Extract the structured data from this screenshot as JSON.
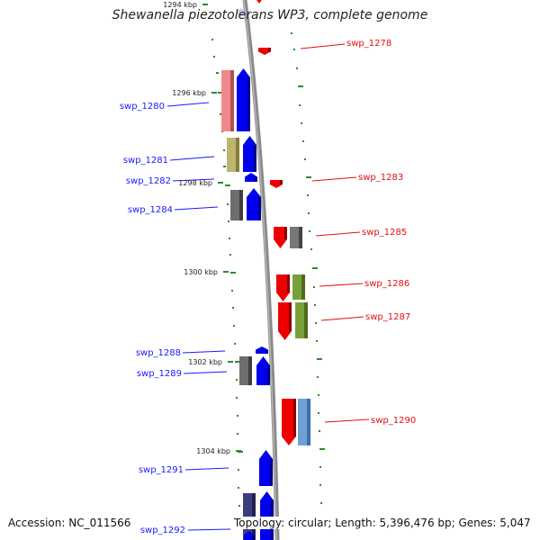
{
  "header": {
    "title": "Shewanella piezotolerans WP3, complete genome"
  },
  "footer": {
    "accession": "Accession: NC_011566",
    "summary": "Topology: circular; Length: 5,396,476 bp; Genes: 5,047"
  },
  "colors": {
    "backbone": "#8a8a8a",
    "tick": "#2e8b2e",
    "forward_label": "#1a1aff",
    "reverse_label": "#e01010"
  },
  "kbp_ticks": [
    {
      "label": "1294 kbp"
    },
    {
      "label": "1296 kbp"
    },
    {
      "label": "1298 kbp"
    },
    {
      "label": "1300 kbp"
    },
    {
      "label": "1302 kbp"
    },
    {
      "label": "1304 kbp"
    }
  ],
  "genes": [
    {
      "name": "swp_1278",
      "strand": "reverse"
    },
    {
      "name": "swp_1280",
      "strand": "forward"
    },
    {
      "name": "swp_1281",
      "strand": "forward"
    },
    {
      "name": "swp_1282",
      "strand": "forward"
    },
    {
      "name": "swp_1283",
      "strand": "reverse"
    },
    {
      "name": "swp_1284",
      "strand": "forward"
    },
    {
      "name": "swp_1285",
      "strand": "reverse"
    },
    {
      "name": "swp_1286",
      "strand": "reverse"
    },
    {
      "name": "swp_1287",
      "strand": "reverse"
    },
    {
      "name": "swp_1288",
      "strand": "forward"
    },
    {
      "name": "swp_1289",
      "strand": "forward"
    },
    {
      "name": "swp_1290",
      "strand": "reverse"
    },
    {
      "name": "swp_1291",
      "strand": "forward"
    },
    {
      "name": "swp_1292",
      "strand": "forward"
    }
  ]
}
